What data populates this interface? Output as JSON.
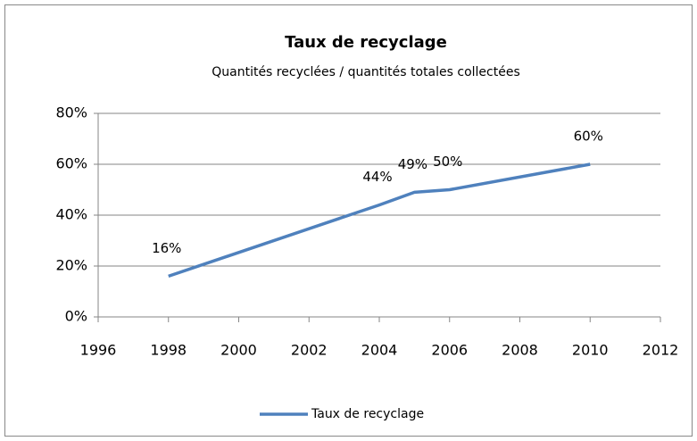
{
  "chart_data": {
    "type": "line",
    "title": "Taux de recyclage",
    "subtitle": "Quantités recyclées / quantités totales collectées",
    "x": [
      1998,
      2004,
      2005,
      2006,
      2010
    ],
    "series": [
      {
        "name": "Taux de recyclage",
        "color": "#4f81bd",
        "values": [
          16,
          44,
          49,
          50,
          60
        ],
        "value_labels": [
          "16%",
          "44%",
          "49%",
          "50%",
          "60%"
        ]
      }
    ],
    "xlim": [
      1996,
      2012
    ],
    "xticks": [
      1996,
      1998,
      2000,
      2002,
      2004,
      2006,
      2008,
      2010,
      2012
    ],
    "ylim": [
      0,
      80
    ],
    "yticks": [
      {
        "value": 0,
        "label": "0%"
      },
      {
        "value": 20,
        "label": "20%"
      },
      {
        "value": 40,
        "label": "40%"
      },
      {
        "value": 60,
        "label": "60%"
      },
      {
        "value": 80,
        "label": "80%"
      }
    ],
    "grid": true,
    "legend": "bottom"
  }
}
